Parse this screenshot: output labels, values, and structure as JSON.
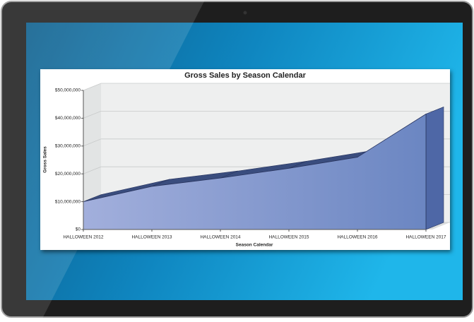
{
  "chart_data": {
    "type": "area",
    "title": "Gross Sales by Season Calendar",
    "x_label": "Season Calendar",
    "y_label": "Gross Sales",
    "categories": [
      "HALLOWEEN 2012",
      "HALLOWEEN 2013",
      "HALLOWEEN 2014",
      "HALLOWEEN 2015",
      "HALLOWEEN 2016",
      "HALLOWEEN 2017"
    ],
    "values": [
      10000000,
      15500000,
      18500000,
      22000000,
      26000000,
      41500000
    ],
    "color": "#7f93cf",
    "ylim": [
      0,
      50000000
    ],
    "yticks": [
      {
        "value": 0,
        "label": "$0"
      },
      {
        "value": 10000000,
        "label": "$10,000,000"
      },
      {
        "value": 20000000,
        "label": "$20,000,000"
      },
      {
        "value": 30000000,
        "label": "$30,000,000"
      },
      {
        "value": 40000000,
        "label": "$40,000,000"
      },
      {
        "value": 50000000,
        "label": "$50,000,000"
      }
    ],
    "grid": true
  }
}
